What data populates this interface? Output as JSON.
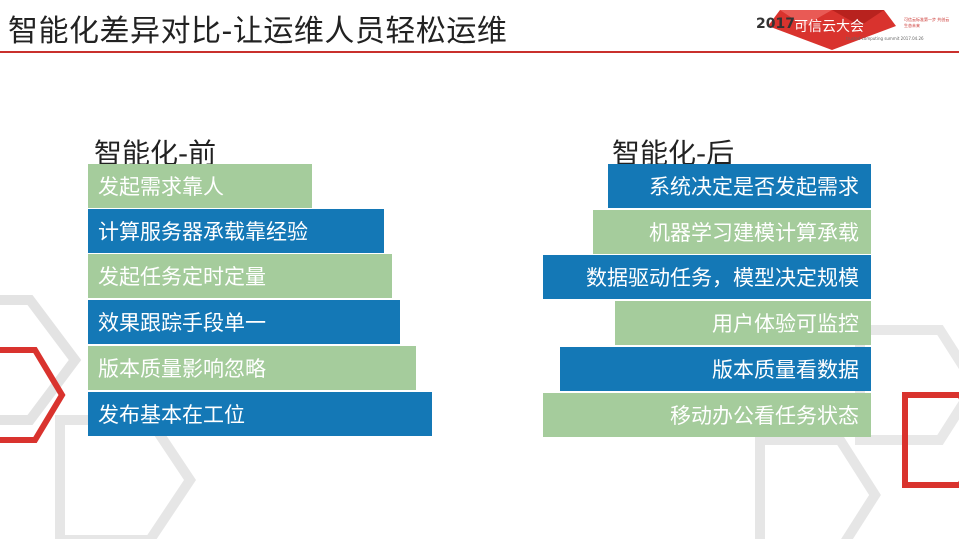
{
  "header": {
    "title": "智能化差异对比-让运维人员轻松运维",
    "logo": {
      "year": "2017",
      "name": "可信云大会",
      "subtitle": "trusted computing summit 2017.04.26",
      "slogan": "可信云标准第一步 共创云生态未来"
    }
  },
  "colors": {
    "green": "#a5cc9c",
    "blue": "#1478b6",
    "accent_red": "#c9302c"
  },
  "before": {
    "heading": "智能化-前",
    "items": [
      {
        "label": "发起需求靠人",
        "color": "green"
      },
      {
        "label": "计算服务器承载靠经验",
        "color": "blue"
      },
      {
        "label": "发起任务定时定量",
        "color": "green"
      },
      {
        "label": "效果跟踪手段单一",
        "color": "blue"
      },
      {
        "label": "版本质量影响忽略",
        "color": "green"
      },
      {
        "label": "发布基本在工位",
        "color": "blue"
      }
    ]
  },
  "after": {
    "heading": "智能化-后",
    "items": [
      {
        "label": "系统决定是否发起需求",
        "color": "blue"
      },
      {
        "label": "机器学习建模计算承载",
        "color": "green"
      },
      {
        "label": "数据驱动任务，模型决定规模",
        "color": "blue"
      },
      {
        "label": "用户体验可监控",
        "color": "green"
      },
      {
        "label": "版本质量看数据",
        "color": "blue"
      },
      {
        "label": "移动办公看任务状态",
        "color": "green"
      }
    ]
  }
}
